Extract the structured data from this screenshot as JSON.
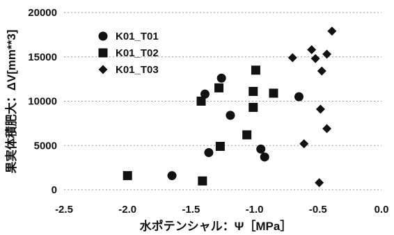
{
  "chart_data": {
    "type": "scatter",
    "xlabel": "水ポテンシャル：Ψ［MPa］",
    "ylabel": "果実体積肥大：ΔV[mm**3]",
    "xlim": [
      -2.5,
      0.0
    ],
    "ylim": [
      0,
      20000
    ],
    "x_ticks": [
      "-2.5",
      "-2.0",
      "-1.5",
      "-1.0",
      "-0.5",
      "0.0"
    ],
    "y_ticks": [
      "0",
      "5000",
      "10000",
      "15000",
      "20000"
    ],
    "grid": "horizontal-dotted",
    "legend_position": "top-left",
    "series": [
      {
        "name": "K01_T01",
        "marker": "circle",
        "points": [
          {
            "x": -1.65,
            "y": 1600
          },
          {
            "x": -1.39,
            "y": 10800
          },
          {
            "x": -1.36,
            "y": 4200
          },
          {
            "x": -1.26,
            "y": 12600
          },
          {
            "x": -1.19,
            "y": 8400
          },
          {
            "x": -0.95,
            "y": 4600
          },
          {
            "x": -0.92,
            "y": 3700
          },
          {
            "x": -0.65,
            "y": 10500
          }
        ]
      },
      {
        "name": "K01_T02",
        "marker": "square",
        "points": [
          {
            "x": -2.0,
            "y": 1600
          },
          {
            "x": -1.42,
            "y": 10000
          },
          {
            "x": -1.41,
            "y": 1000
          },
          {
            "x": -1.28,
            "y": 11500
          },
          {
            "x": -1.27,
            "y": 4900
          },
          {
            "x": -1.06,
            "y": 6200
          },
          {
            "x": -1.01,
            "y": 11100
          },
          {
            "x": -1.01,
            "y": 9300
          },
          {
            "x": -0.99,
            "y": 13500
          },
          {
            "x": -0.85,
            "y": 10900
          }
        ]
      },
      {
        "name": "K01_T03",
        "marker": "diamond",
        "points": [
          {
            "x": -0.7,
            "y": 14900
          },
          {
            "x": -0.61,
            "y": 5200
          },
          {
            "x": -0.55,
            "y": 15800
          },
          {
            "x": -0.52,
            "y": 14800
          },
          {
            "x": -0.49,
            "y": 800
          },
          {
            "x": -0.48,
            "y": 9100
          },
          {
            "x": -0.47,
            "y": 13400
          },
          {
            "x": -0.43,
            "y": 15300
          },
          {
            "x": -0.43,
            "y": 6900
          },
          {
            "x": -0.39,
            "y": 17900
          }
        ]
      }
    ]
  }
}
